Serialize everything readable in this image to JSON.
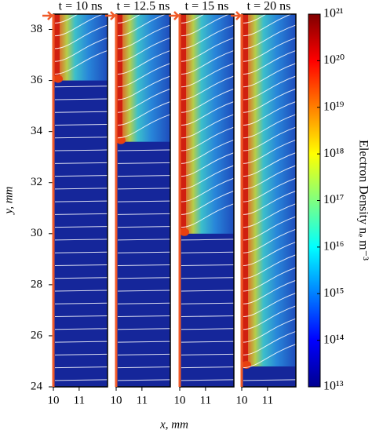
{
  "chart_data": {
    "type": "heatmap-panels",
    "y_label": "y, mm",
    "x_label": "x, mm",
    "ylim": [
      24,
      38.6
    ],
    "yticks": [
      24,
      26,
      28,
      30,
      32,
      34,
      36,
      38
    ],
    "xlim": [
      10,
      12.1
    ],
    "xticks": [
      10,
      11
    ],
    "panels": [
      {
        "title": "t = 10 ns",
        "tip_y": 36
      },
      {
        "title": "t = 12.5 ns",
        "tip_y": 33.6
      },
      {
        "title": "t = 15 ns",
        "tip_y": 30
      },
      {
        "title": "t = 20 ns",
        "tip_y": 24.8
      }
    ],
    "colorbar": {
      "label": "Electron Density nₑ m⁻³",
      "log_scale": true,
      "clim": [
        10000000000000.0,
        1e+21
      ],
      "ticks": [
        {
          "value": 1e+21,
          "label": "10²¹"
        },
        {
          "value": 1e+20,
          "label": "10²⁰"
        },
        {
          "value": 1e+19,
          "label": "10¹⁹"
        },
        {
          "value": 1e+18,
          "label": "10¹⁸"
        },
        {
          "value": 1e+17,
          "label": "10¹⁷"
        },
        {
          "value": 1e+16,
          "label": "10¹⁶"
        },
        {
          "value": 1000000000000000.0,
          "label": "10¹⁵"
        },
        {
          "value": 100000000000000.0,
          "label": "10¹⁴"
        },
        {
          "value": 10000000000000.0,
          "label": "10¹³"
        }
      ]
    }
  }
}
